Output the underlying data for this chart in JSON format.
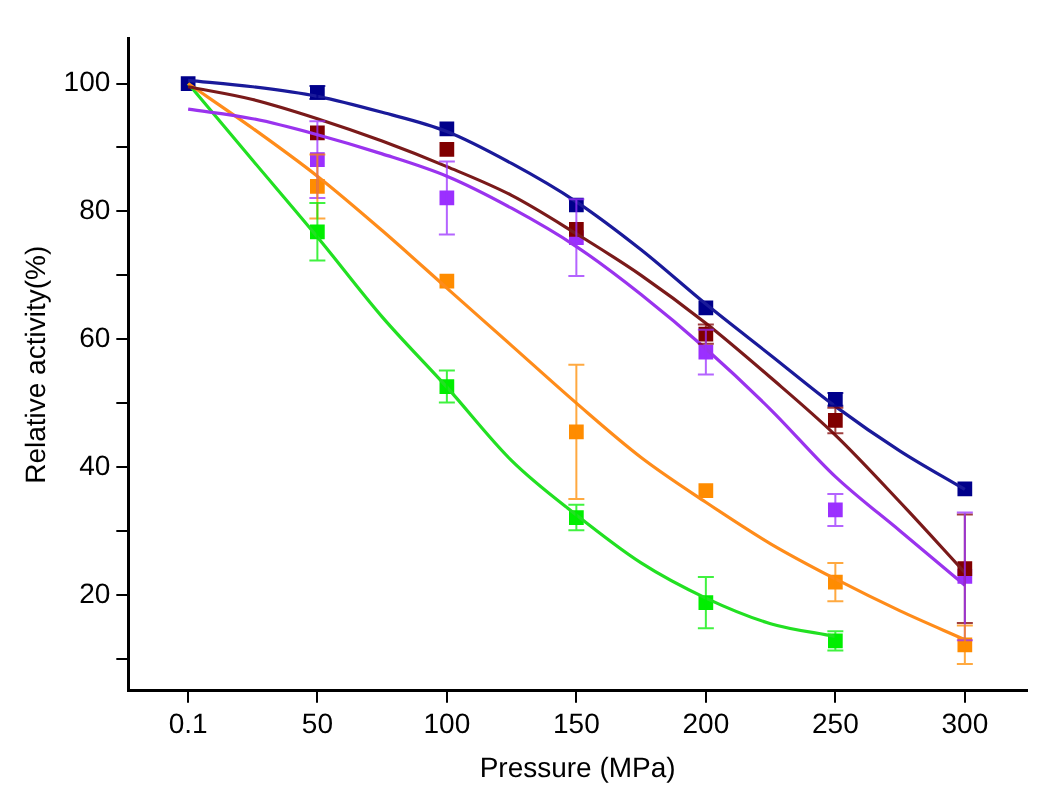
{
  "chart_data": {
    "type": "scatter",
    "xlabel": "Pressure (MPa)",
    "ylabel": "Relative activity(%)",
    "x": [
      0.1,
      50,
      100,
      150,
      200,
      250,
      300
    ],
    "xlim": [
      -23,
      324
    ],
    "xticks": [
      0.1,
      50,
      100,
      150,
      200,
      250,
      300
    ],
    "ylim": [
      5,
      107
    ],
    "yticks": [
      {
        "value": 10,
        "label": null
      },
      20,
      {
        "value": 30,
        "label": null
      },
      40,
      {
        "value": 50,
        "label": null
      },
      60,
      {
        "value": 70,
        "label": null
      },
      80,
      {
        "value": 90,
        "label": null
      },
      100
    ],
    "grid": false,
    "legend": false,
    "marker": "square",
    "series": [
      {
        "type": "line",
        "marker": "none",
        "color": "#1a1a9a",
        "x": [
          0.1,
          25,
          50,
          75,
          100,
          125,
          150,
          175,
          200,
          225,
          250,
          275,
          300
        ],
        "values": [
          100.5,
          99.5,
          98,
          95.5,
          92.5,
          87.5,
          81.5,
          74,
          65.5,
          57.5,
          49.5,
          42.5,
          36.5
        ]
      },
      {
        "type": "line",
        "marker": "none",
        "color": "#7a1a1a",
        "x": [
          0.1,
          25,
          50,
          75,
          100,
          125,
          150,
          175,
          200,
          225,
          250,
          275,
          300
        ],
        "values": [
          99.5,
          97.5,
          94.5,
          91,
          87,
          82.5,
          76.5,
          70,
          62.5,
          54,
          45,
          34.5,
          23.5
        ]
      },
      {
        "type": "line",
        "marker": "none",
        "color": "#9a33ee",
        "x": [
          0.1,
          25,
          50,
          75,
          100,
          125,
          150,
          175,
          200,
          225,
          250,
          275,
          300
        ],
        "values": [
          96,
          94.5,
          92,
          89,
          85.5,
          80.5,
          74.5,
          67,
          58.5,
          49,
          38.5,
          30,
          21.5
        ]
      },
      {
        "type": "line",
        "marker": "none",
        "color": "#ff8c1a",
        "x": [
          0.1,
          25,
          50,
          75,
          100,
          125,
          150,
          175,
          200,
          225,
          250,
          275,
          300
        ],
        "values": [
          100,
          93,
          85.5,
          77,
          68,
          59,
          50,
          41.5,
          34.5,
          28,
          22.5,
          17.5,
          13
        ]
      },
      {
        "type": "line",
        "marker": "none",
        "color": "#22e022",
        "x": [
          0.1,
          25,
          50,
          75,
          100,
          125,
          150,
          175,
          200,
          225,
          250
        ],
        "values": [
          100,
          88,
          76,
          63.5,
          52.5,
          41,
          32.5,
          25,
          19.5,
          15.5,
          13.5
        ]
      },
      {
        "color": "#00008b",
        "values": [
          100,
          98.6,
          92.9,
          81,
          64.9,
          50.6,
          36.6
        ],
        "errors": [
          null,
          1,
          null,
          null,
          null,
          1,
          null
        ]
      },
      {
        "color": "#800000",
        "values": [
          null,
          92.3,
          89.7,
          77.2,
          60.8,
          47.3,
          24.1
        ],
        "errors": [
          null,
          null,
          null,
          null,
          1.5,
          2,
          8.5
        ]
      },
      {
        "color": "#9b30ff",
        "values": [
          null,
          88.1,
          82.1,
          75.9,
          58,
          33.3,
          22.9
        ],
        "errors": [
          null,
          6,
          5.7,
          6,
          3.5,
          2.5,
          10
        ]
      },
      {
        "color": "#ff8c00",
        "values": [
          null,
          83.9,
          69.1,
          45.5,
          36.3,
          22,
          12.2
        ],
        "errors": [
          null,
          5,
          null,
          10.5,
          null,
          3,
          3
        ]
      },
      {
        "color": "#00ee00",
        "values": [
          null,
          76.8,
          52.6,
          32.1,
          18.8,
          12.8,
          null
        ],
        "errors": [
          null,
          4.5,
          2.5,
          2,
          4,
          1.5,
          null
        ]
      }
    ]
  }
}
